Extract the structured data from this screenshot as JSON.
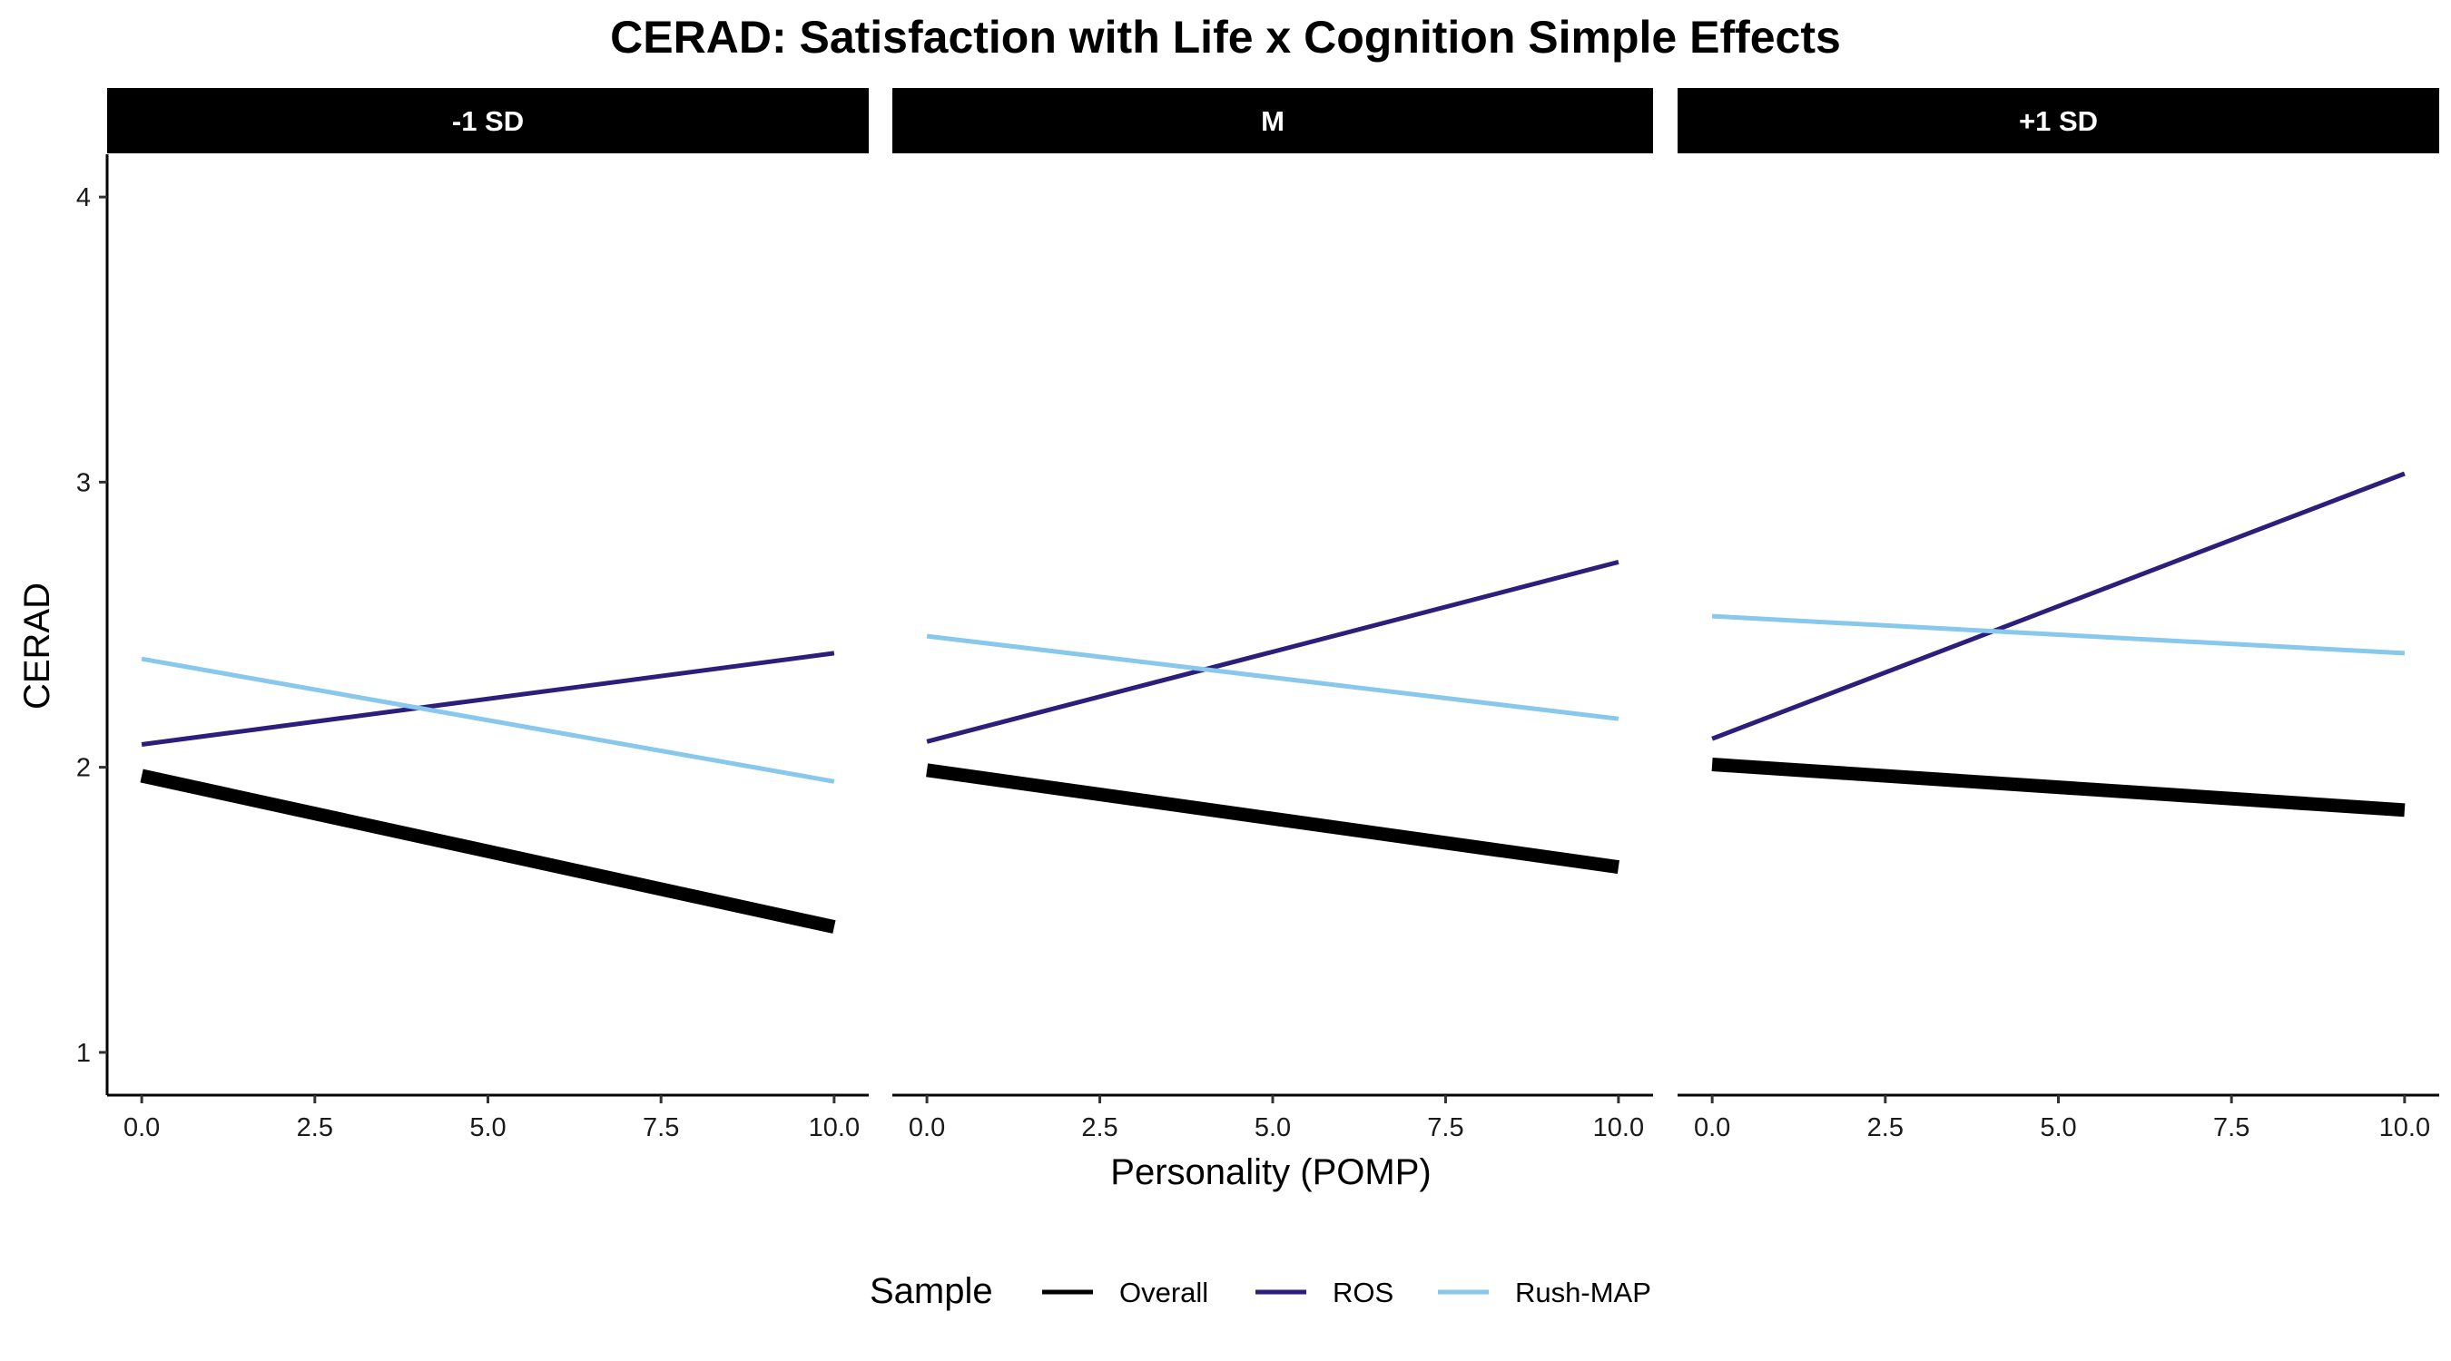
{
  "chart_data": {
    "type": "line",
    "title": "CERAD: Satisfaction with Life x Cognition Simple Effects",
    "xlabel": "Personality (POMP)",
    "ylabel": "CERAD",
    "xlim": [
      -0.5,
      10.5
    ],
    "ylim": [
      0.85,
      4.15
    ],
    "x_ticks": [
      0,
      2.5,
      5,
      7.5,
      10
    ],
    "x_tick_labels": [
      "0.0",
      "2.5",
      "5.0",
      "7.5",
      "10.0"
    ],
    "y_ticks": [
      1,
      2,
      3,
      4
    ],
    "y_tick_labels": [
      "1",
      "2",
      "3",
      "4"
    ],
    "grid": false,
    "legend": {
      "title": "Sample",
      "position": "bottom",
      "entries": [
        {
          "label": "Overall",
          "color": "#000000"
        },
        {
          "label": "ROS",
          "color": "#2c1f7c"
        },
        {
          "label": "Rush-MAP",
          "color": "#87c8ec"
        }
      ]
    },
    "panels": [
      {
        "label": "-1 SD",
        "series": [
          {
            "name": "Overall",
            "color": "#000000",
            "x": [
              0,
              10
            ],
            "y": [
              1.97,
              1.44
            ]
          },
          {
            "name": "ROS",
            "color": "#2c1f7c",
            "x": [
              0,
              10
            ],
            "y": [
              2.08,
              2.4
            ]
          },
          {
            "name": "Rush-MAP",
            "color": "#87c8ec",
            "x": [
              0,
              10
            ],
            "y": [
              2.38,
              1.95
            ]
          }
        ]
      },
      {
        "label": "M",
        "series": [
          {
            "name": "Overall",
            "color": "#000000",
            "x": [
              0,
              10
            ],
            "y": [
              1.99,
              1.65
            ]
          },
          {
            "name": "ROS",
            "color": "#2c1f7c",
            "x": [
              0,
              10
            ],
            "y": [
              2.09,
              2.72
            ]
          },
          {
            "name": "Rush-MAP",
            "color": "#87c8ec",
            "x": [
              0,
              10
            ],
            "y": [
              2.46,
              2.17
            ]
          }
        ]
      },
      {
        "label": "+1 SD",
        "series": [
          {
            "name": "Overall",
            "color": "#000000",
            "x": [
              0,
              10
            ],
            "y": [
              2.01,
              1.85
            ]
          },
          {
            "name": "ROS",
            "color": "#2c1f7c",
            "x": [
              0,
              10
            ],
            "y": [
              2.1,
              3.03
            ]
          },
          {
            "name": "Rush-MAP",
            "color": "#87c8ec",
            "x": [
              0,
              10
            ],
            "y": [
              2.53,
              2.4
            ]
          }
        ]
      }
    ]
  }
}
